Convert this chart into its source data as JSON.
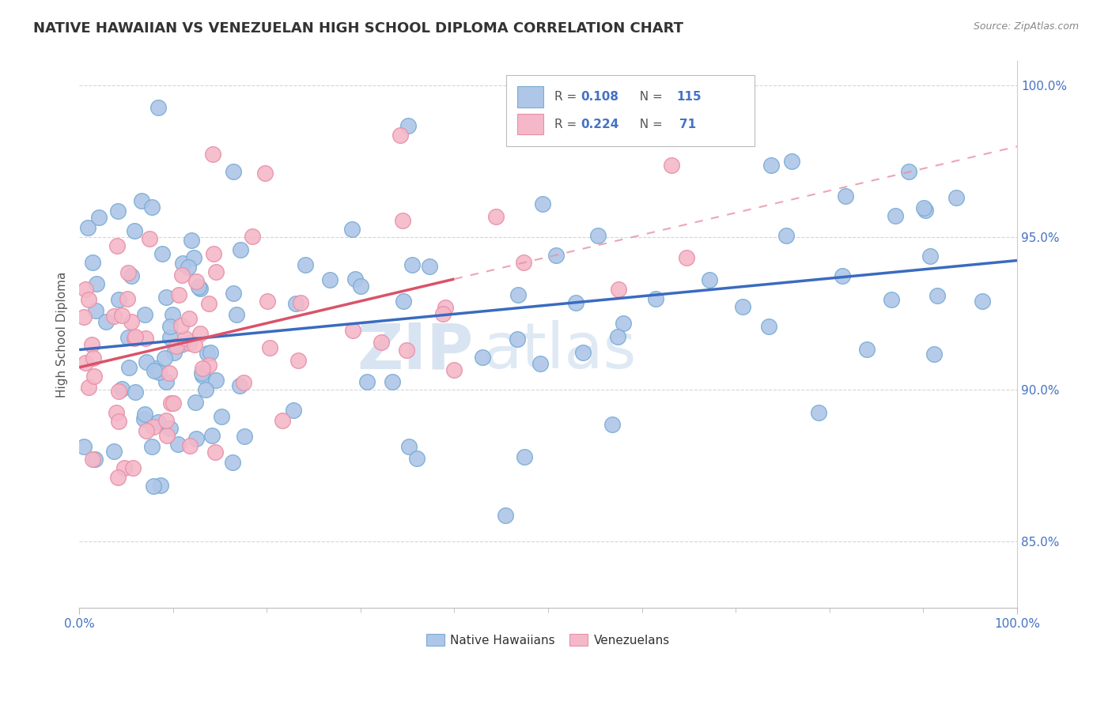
{
  "title": "NATIVE HAWAIIAN VS VENEZUELAN HIGH SCHOOL DIPLOMA CORRELATION CHART",
  "source": "Source: ZipAtlas.com",
  "ylabel": "High School Diploma",
  "xlim": [
    0.0,
    1.0
  ],
  "ylim": [
    0.828,
    1.008
  ],
  "yticks": [
    0.85,
    0.9,
    0.95,
    1.0
  ],
  "ytick_labels": [
    "85.0%",
    "90.0%",
    "95.0%",
    "100.0%"
  ],
  "blue_color": "#aec6e8",
  "blue_edge_color": "#7aadd4",
  "pink_color": "#f4b8c8",
  "pink_edge_color": "#e890a8",
  "blue_line_color": "#3a6bbf",
  "pink_line_color": "#d9536a",
  "pink_dash_color": "#e8909f",
  "watermark_zip": "ZIP",
  "watermark_atlas": "atlas",
  "title_fontsize": 13,
  "axis_label_fontsize": 11,
  "tick_fontsize": 11,
  "tick_color": "#4472c4"
}
